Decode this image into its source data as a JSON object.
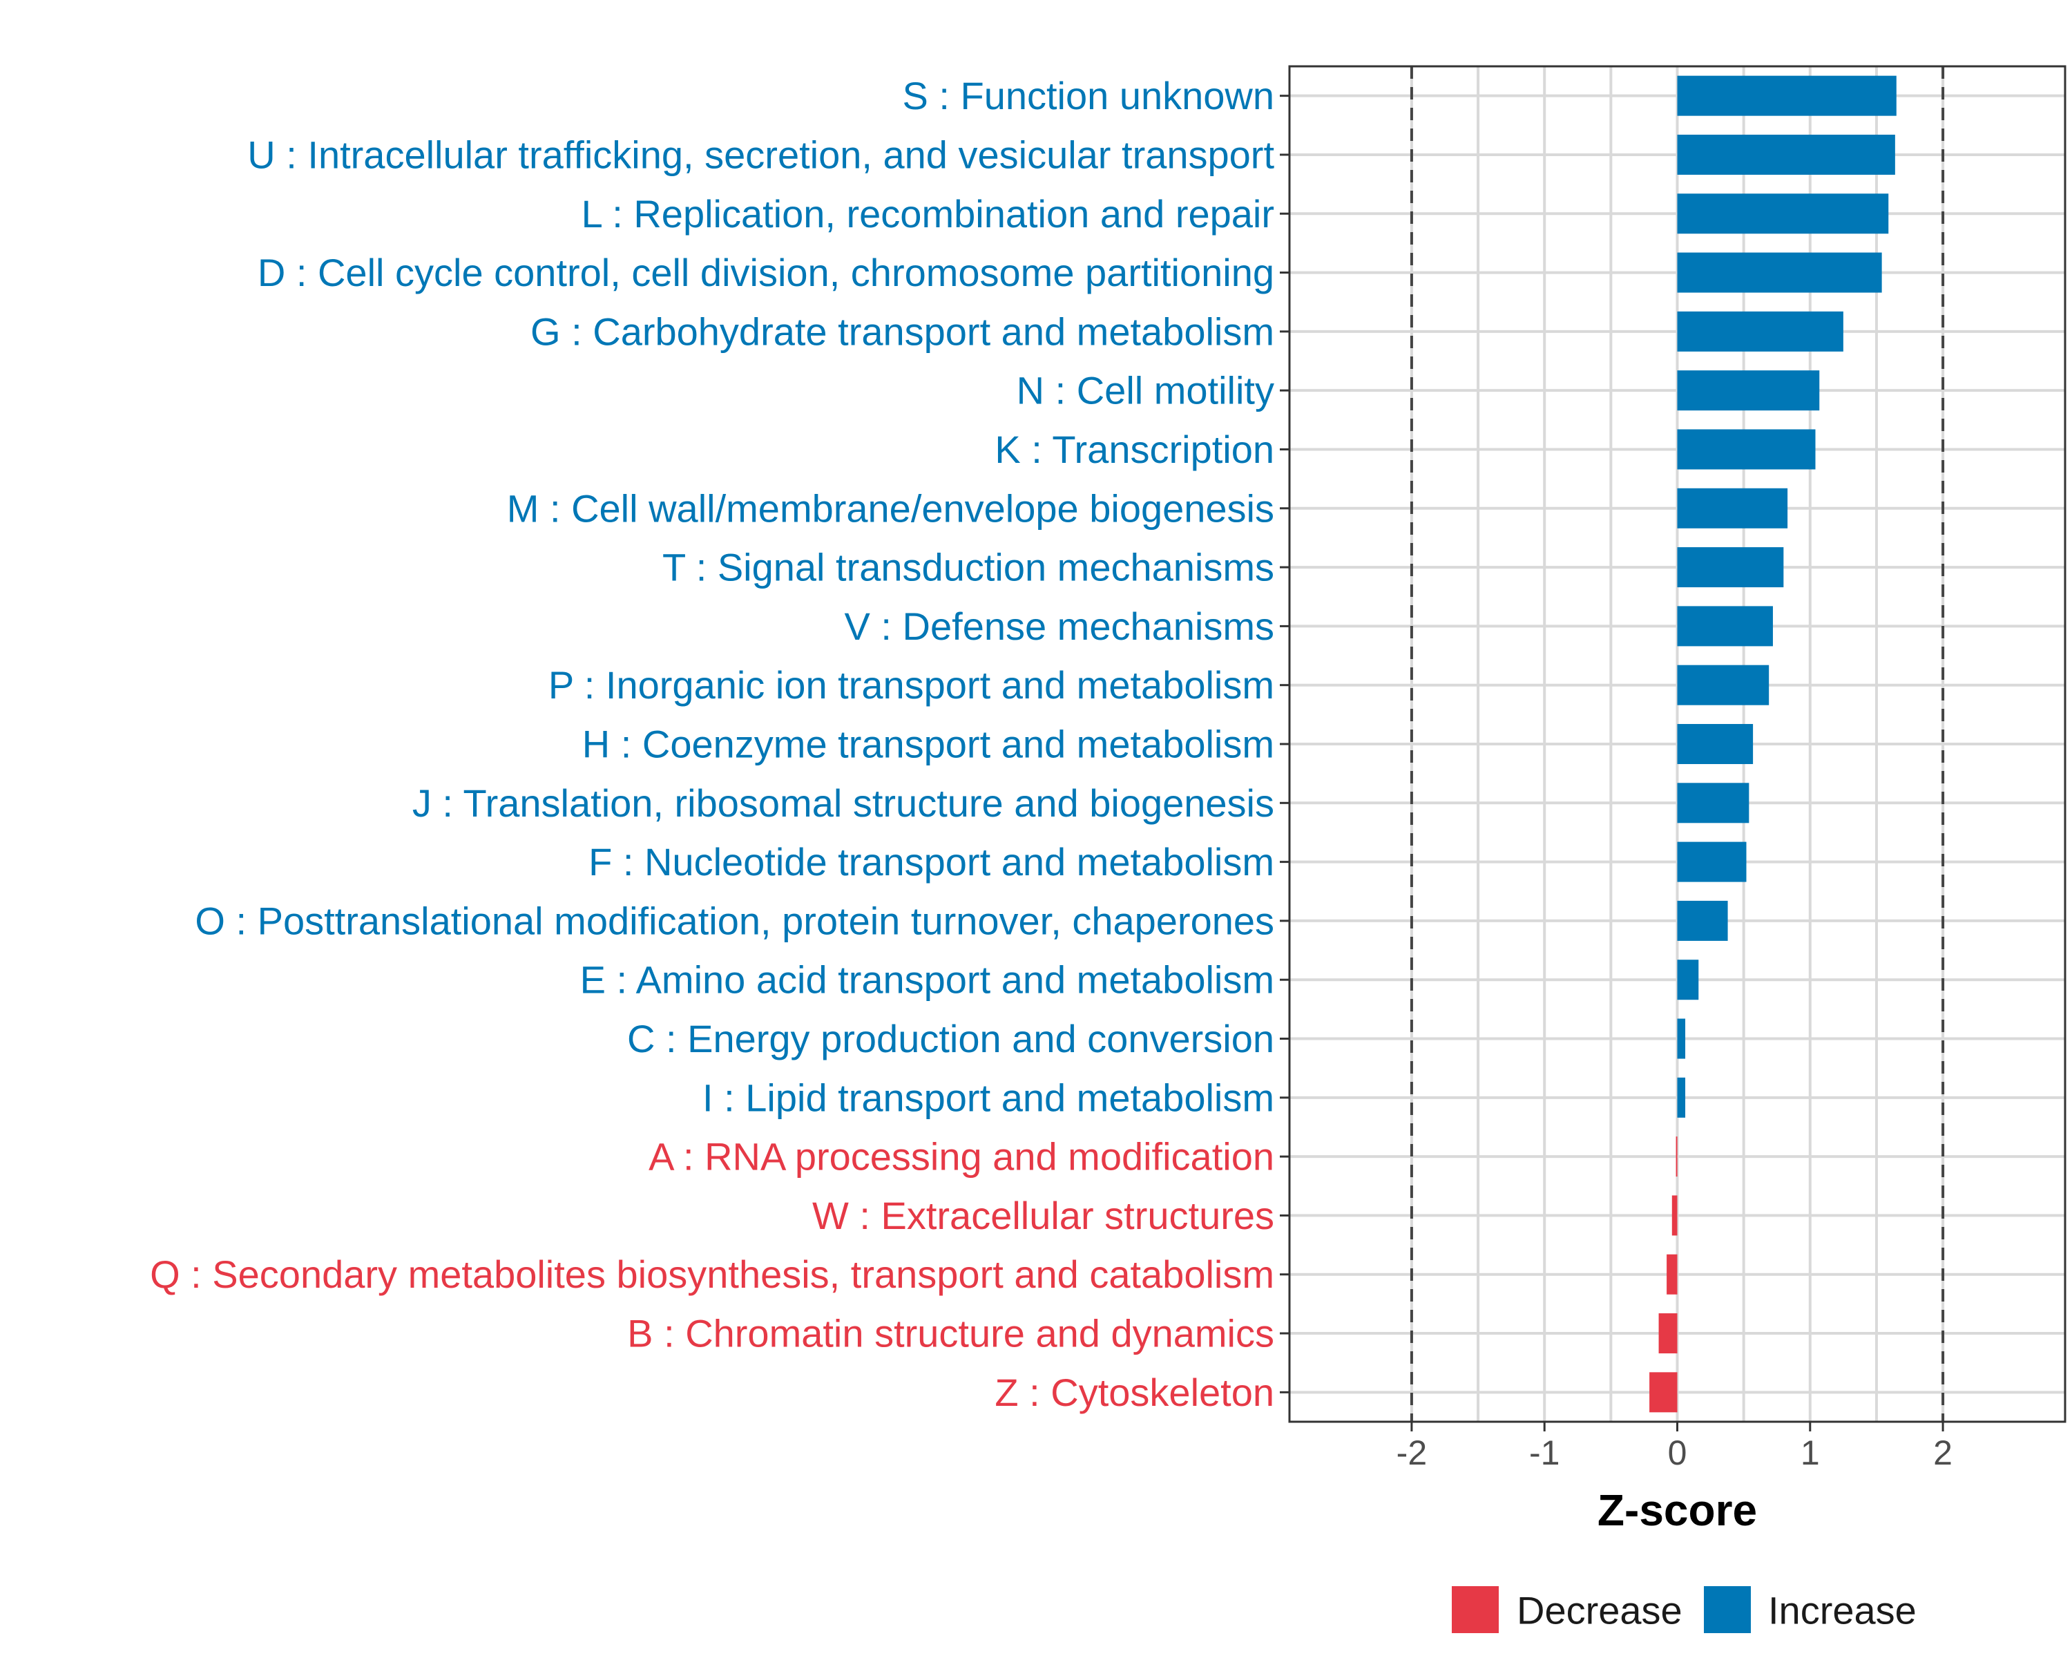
{
  "chart_data": {
    "type": "bar",
    "orientation": "horizontal",
    "title": "",
    "xlabel": "Z-score",
    "ylabel": "",
    "xlim": [
      -2.92,
      2.92
    ],
    "xticks": [
      -2,
      -1,
      0,
      1,
      2
    ],
    "xtick_labels": [
      "-2",
      "-1",
      "0",
      "1",
      "2"
    ],
    "reference_lines": [
      -2,
      2
    ],
    "grid": true,
    "legend_position": "bottom",
    "colors": {
      "Decrease": "#e63946",
      "Increase": "#0077b6"
    },
    "categories": [
      {
        "label": "S : Function unknown",
        "value": 1.65,
        "direction": "Increase"
      },
      {
        "label": "U : Intracellular trafficking, secretion, and vesicular transport",
        "value": 1.64,
        "direction": "Increase"
      },
      {
        "label": "L : Replication, recombination and repair",
        "value": 1.59,
        "direction": "Increase"
      },
      {
        "label": "D : Cell cycle control, cell division, chromosome partitioning",
        "value": 1.54,
        "direction": "Increase"
      },
      {
        "label": "G : Carbohydrate transport and metabolism",
        "value": 1.25,
        "direction": "Increase"
      },
      {
        "label": "N : Cell motility",
        "value": 1.07,
        "direction": "Increase"
      },
      {
        "label": "K : Transcription",
        "value": 1.04,
        "direction": "Increase"
      },
      {
        "label": "M : Cell wall/membrane/envelope biogenesis",
        "value": 0.83,
        "direction": "Increase"
      },
      {
        "label": "T : Signal transduction mechanisms",
        "value": 0.8,
        "direction": "Increase"
      },
      {
        "label": "V : Defense mechanisms",
        "value": 0.72,
        "direction": "Increase"
      },
      {
        "label": "P : Inorganic ion transport and metabolism",
        "value": 0.69,
        "direction": "Increase"
      },
      {
        "label": "H : Coenzyme transport and metabolism",
        "value": 0.57,
        "direction": "Increase"
      },
      {
        "label": "J : Translation, ribosomal structure and biogenesis",
        "value": 0.54,
        "direction": "Increase"
      },
      {
        "label": "F : Nucleotide transport and metabolism",
        "value": 0.52,
        "direction": "Increase"
      },
      {
        "label": "O : Posttranslational modification, protein turnover, chaperones",
        "value": 0.38,
        "direction": "Increase"
      },
      {
        "label": "E : Amino acid transport and metabolism",
        "value": 0.16,
        "direction": "Increase"
      },
      {
        "label": "C : Energy production and conversion",
        "value": 0.06,
        "direction": "Increase"
      },
      {
        "label": "I : Lipid transport and metabolism",
        "value": 0.06,
        "direction": "Increase"
      },
      {
        "label": "A : RNA processing and modification",
        "value": -0.01,
        "direction": "Decrease"
      },
      {
        "label": "W : Extracellular structures",
        "value": -0.04,
        "direction": "Decrease"
      },
      {
        "label": "Q : Secondary metabolites biosynthesis, transport and catabolism",
        "value": -0.08,
        "direction": "Decrease"
      },
      {
        "label": "B : Chromatin structure and dynamics",
        "value": -0.14,
        "direction": "Decrease"
      },
      {
        "label": "Z : Cytoskeleton",
        "value": -0.21,
        "direction": "Decrease"
      }
    ],
    "legend": [
      {
        "label": "Decrease",
        "color": "#e63946"
      },
      {
        "label": "Increase",
        "color": "#0077b6"
      }
    ]
  }
}
